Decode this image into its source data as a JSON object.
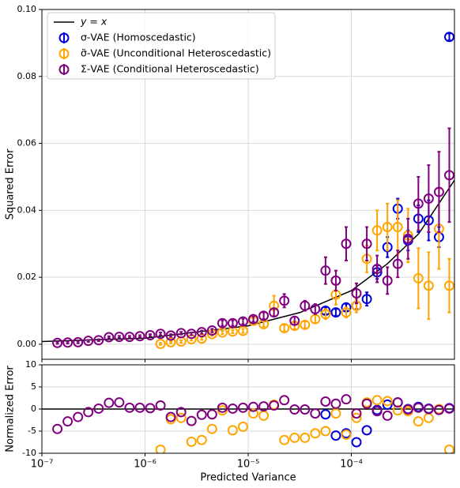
{
  "chart_data": [
    {
      "type": "scatter",
      "ylabel": "Squared Error",
      "xscale": "log",
      "grid": true,
      "legend": "upper left",
      "xlim": [
        1e-07,
        0.001
      ],
      "ylim": [
        -0.0045,
        0.1
      ],
      "xticks": [
        1e-07,
        1e-06,
        1e-05,
        0.0001
      ],
      "yticks": [
        {
          "value": 0,
          "label": "0.00"
        },
        {
          "value": 0.02,
          "label": "0.02"
        },
        {
          "value": 0.04,
          "label": "0.04"
        },
        {
          "value": 0.06,
          "label": "0.06"
        },
        {
          "value": 0.08,
          "label": "0.08"
        },
        {
          "value": 0.1,
          "label": "0.10"
        }
      ],
      "reference_line": {
        "name": "y = x",
        "color": "#000000",
        "x": [
          1e-07,
          1e-06,
          1e-05,
          3.2e-05,
          0.0001,
          0.000223,
          0.00045,
          0.001
        ],
        "values": [
          0.0008,
          0.0018,
          0.0055,
          0.0095,
          0.016,
          0.024,
          0.033,
          0.049
        ]
      },
      "series": [
        {
          "name": "σ-VAE (Homoscedastic)",
          "color": "#0000dd",
          "x": [
            5.623e-05,
            7.079e-05,
            8.913e-05,
            0.0001122,
            0.0001413,
            0.0001778,
            0.0002239,
            0.0002818,
            0.0003548,
            0.0004467,
            0.0005623,
            0.0007079,
            0.0008913
          ],
          "values": [
            0.01,
            0.0095,
            0.011,
            0.0115,
            0.0135,
            0.0215,
            0.029,
            0.0405,
            0.031,
            0.0375,
            0.037,
            0.032,
            0.0918
          ],
          "errors": [
            0.001,
            0.001,
            0.001,
            0.001,
            0.002,
            0.002,
            0.003,
            0.003,
            0.003,
            0.004,
            0.006,
            0.003,
            0.001
          ]
        },
        {
          "name": "σ̃-VAE (Unconditional Heteroscedastic)",
          "color": "#ffa500",
          "x": [
            1.413e-06,
            1.778e-06,
            2.239e-06,
            2.818e-06,
            3.548e-06,
            4.467e-06,
            5.623e-06,
            7.079e-06,
            8.913e-06,
            1.122e-05,
            1.413e-05,
            1.778e-05,
            2.239e-05,
            2.818e-05,
            3.548e-05,
            4.467e-05,
            5.623e-05,
            7.079e-05,
            8.913e-05,
            0.0001122,
            0.0001413,
            0.0001778,
            0.0002239,
            0.0002818,
            0.0003548,
            0.0004467,
            0.0005623,
            0.0007079,
            0.0008913
          ],
          "values": [
            0.0001,
            0.0006,
            0.0008,
            0.0015,
            0.0017,
            0.003,
            0.0035,
            0.0038,
            0.004,
            0.007,
            0.006,
            0.0115,
            0.0048,
            0.0055,
            0.0058,
            0.0075,
            0.009,
            0.0148,
            0.0095,
            0.0115,
            0.0255,
            0.034,
            0.035,
            0.035,
            0.0325,
            0.0197,
            0.0175,
            0.0345,
            0.0175
          ],
          "errors": [
            0.0003,
            0.0003,
            0.0004,
            0.0004,
            0.0004,
            0.0005,
            0.0005,
            0.0005,
            0.0006,
            0.0008,
            0.0008,
            0.003,
            0.001,
            0.001,
            0.001,
            0.0012,
            0.0015,
            0.003,
            0.0015,
            0.002,
            0.004,
            0.006,
            0.007,
            0.008,
            0.008,
            0.009,
            0.01,
            0.012,
            0.008
          ]
        },
        {
          "name": "Σ-VAE (Conditional Heteroscedastic)",
          "color": "#800080",
          "x": [
            1.413e-07,
            1.778e-07,
            2.239e-07,
            2.818e-07,
            3.548e-07,
            4.467e-07,
            5.623e-07,
            7.079e-07,
            8.913e-07,
            1.122e-06,
            1.413e-06,
            1.778e-06,
            2.239e-06,
            2.818e-06,
            3.548e-06,
            4.467e-06,
            5.623e-06,
            7.079e-06,
            8.913e-06,
            1.122e-05,
            1.413e-05,
            1.778e-05,
            2.239e-05,
            2.818e-05,
            3.548e-05,
            4.467e-05,
            5.623e-05,
            7.079e-05,
            8.913e-05,
            0.0001122,
            0.0001413,
            0.0001778,
            0.0002239,
            0.0002818,
            0.0003548,
            0.0004467,
            0.0005623,
            0.0007079,
            0.0008913
          ],
          "values": [
            0.0004,
            0.0005,
            0.0006,
            0.001,
            0.0012,
            0.0021,
            0.0022,
            0.0022,
            0.0024,
            0.0027,
            0.0031,
            0.0026,
            0.0033,
            0.0031,
            0.0036,
            0.0041,
            0.0063,
            0.0063,
            0.0068,
            0.0075,
            0.0085,
            0.0095,
            0.013,
            0.007,
            0.0115,
            0.0105,
            0.022,
            0.019,
            0.03,
            0.0152,
            0.03,
            0.0225,
            0.019,
            0.024,
            0.0315,
            0.042,
            0.0435,
            0.0455,
            0.0505
          ],
          "errors": [
            0.0003,
            0.0003,
            0.0003,
            0.0003,
            0.0003,
            0.0003,
            0.0003,
            0.0003,
            0.0003,
            0.0003,
            0.0004,
            0.0004,
            0.0004,
            0.0004,
            0.0005,
            0.0005,
            0.0008,
            0.0008,
            0.0008,
            0.0008,
            0.001,
            0.0012,
            0.002,
            0.0012,
            0.0015,
            0.0015,
            0.004,
            0.003,
            0.005,
            0.003,
            0.005,
            0.004,
            0.004,
            0.004,
            0.006,
            0.008,
            0.01,
            0.012,
            0.014
          ]
        }
      ]
    },
    {
      "type": "scatter",
      "ylabel": "Normalized Error",
      "xlabel": "Predicted Variance",
      "xscale": "log",
      "grid": true,
      "xlim": [
        1e-07,
        0.001
      ],
      "ylim": [
        -10,
        10
      ],
      "xticks": [
        {
          "value": 1e-07,
          "label": "10⁻⁷"
        },
        {
          "value": 1e-06,
          "label": "10⁻⁶"
        },
        {
          "value": 1e-05,
          "label": "10⁻⁵"
        },
        {
          "value": 0.0001,
          "label": "10⁻⁴"
        }
      ],
      "yticks": [
        -10,
        -5,
        0,
        5,
        10
      ],
      "hline": 0,
      "series": [
        {
          "color": "#0000dd",
          "x": [
            5.623e-05,
            7.079e-05,
            8.913e-05,
            0.0001122,
            0.0001413,
            0.0001778,
            0.0002239,
            0.0002818,
            0.0003548,
            0.0004467,
            0.0005623,
            0.0007079,
            0.0008913
          ],
          "values": [
            -1.2,
            -6.0,
            -5.5,
            -7.5,
            -4.8,
            -0.2,
            1.0,
            1.5,
            0.0,
            0.5,
            0.1,
            -0.2,
            0.2
          ]
        },
        {
          "color": "#ffa500",
          "x": [
            1.413e-06,
            1.778e-06,
            2.239e-06,
            2.818e-06,
            3.548e-06,
            4.467e-06,
            5.623e-06,
            7.079e-06,
            8.913e-06,
            1.122e-05,
            1.413e-05,
            1.778e-05,
            2.239e-05,
            2.818e-05,
            3.548e-05,
            4.467e-05,
            5.623e-05,
            7.079e-05,
            8.913e-05,
            0.0001122,
            0.0001413,
            0.0001778,
            0.0002239,
            0.0002818,
            0.0003548,
            0.0004467,
            0.0005623,
            0.0007079,
            0.0008913
          ],
          "values": [
            -9.2,
            -2.3,
            -2.0,
            -7.4,
            -7.0,
            -4.5,
            -0.3,
            -4.8,
            -4.0,
            -1.0,
            -1.5,
            1.0,
            -7.0,
            -6.5,
            -6.5,
            -5.5,
            -5.0,
            -1.0,
            -5.8,
            -2.0,
            1.5,
            2.0,
            1.8,
            -0.3,
            -0.5,
            -2.8,
            -2.0,
            0.0,
            -9.2
          ]
        },
        {
          "color": "#800080",
          "x": [
            1.413e-07,
            1.778e-07,
            2.239e-07,
            2.818e-07,
            3.548e-07,
            4.467e-07,
            5.623e-07,
            7.079e-07,
            8.913e-07,
            1.122e-06,
            1.413e-06,
            1.778e-06,
            2.239e-06,
            2.818e-06,
            3.548e-06,
            4.467e-06,
            5.623e-06,
            7.079e-06,
            8.913e-06,
            1.122e-05,
            1.413e-05,
            1.778e-05,
            2.239e-05,
            2.818e-05,
            3.548e-05,
            4.467e-05,
            5.623e-05,
            7.079e-05,
            8.913e-05,
            0.0001122,
            0.0001413,
            0.0001778,
            0.0002239,
            0.0002818,
            0.0003548,
            0.0004467,
            0.0005623,
            0.0007079,
            0.0008913
          ],
          "values": [
            -4.5,
            -2.8,
            -1.8,
            -0.7,
            0.1,
            1.4,
            1.5,
            0.3,
            0.3,
            0.2,
            0.8,
            -1.8,
            -0.7,
            -2.7,
            -1.3,
            -1.2,
            0.3,
            0.1,
            0.3,
            0.5,
            0.6,
            0.8,
            2.0,
            -0.1,
            -0.1,
            -1.0,
            1.7,
            1.2,
            2.2,
            -1.0,
            1.2,
            -0.5,
            -1.5,
            1.5,
            -0.1,
            0.3,
            0.0,
            -0.2,
            0.1
          ]
        }
      ]
    }
  ]
}
